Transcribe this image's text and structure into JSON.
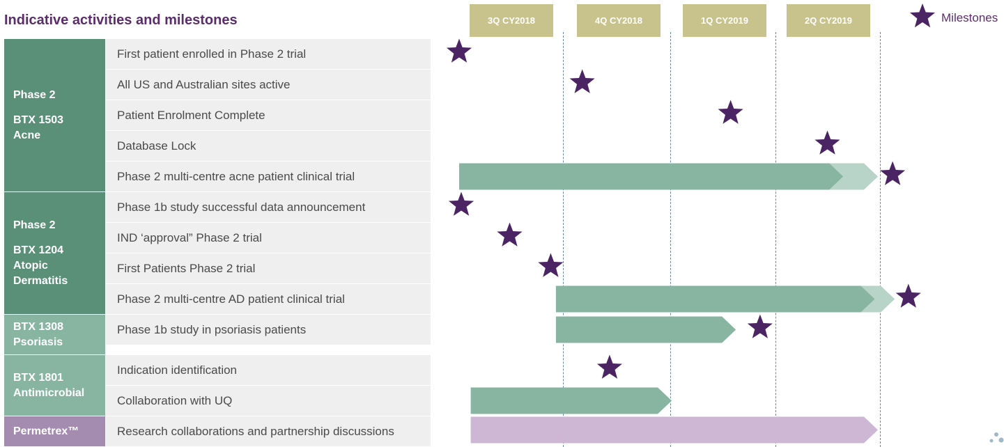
{
  "title": "Indicative activities and milestones",
  "legend": {
    "label": "Milestones",
    "icon": "star-icon"
  },
  "colors": {
    "title": "#5b2d6b",
    "star": "#4b2463",
    "quarter": "#c8c28c",
    "phase_dark": "#5a8f78",
    "phase_light": "#88b4a2",
    "permetrex": "#a48bb0",
    "bar": "#88b4a2",
    "bar_light": "#b8d4c9",
    "bar_purple": "#ceb7d5",
    "row_bg": "#efefef"
  },
  "quarters": [
    "3Q CY2018",
    "4Q CY2018",
    "1Q CY2019",
    "2Q CY2019"
  ],
  "programs": [
    {
      "lines": [
        "Phase 2",
        "",
        "BTX 1503",
        "Acne"
      ]
    },
    {
      "lines": [
        "Phase 2",
        "",
        "BTX 1204",
        "Atopic",
        "Dermatitis"
      ]
    },
    {
      "lines": [
        "BTX 1308",
        "Psoriasis"
      ]
    },
    {
      "lines": [
        "BTX 1801",
        "Antimicrobial"
      ]
    },
    {
      "lines": [
        "Permetrex™"
      ]
    }
  ],
  "activities": [
    "First patient enrolled in Phase 2 trial",
    "All US and Australian sites active",
    "Patient Enrolment Complete",
    "Database Lock",
    "Phase 2 multi-centre acne patient clinical trial",
    "Phase 1b study successful data announcement",
    "IND ‘approval” Phase 2 trial",
    "First Patients Phase 2 trial",
    "Phase 2 multi-centre AD patient clinical trial",
    "Phase 1b study in psoriasis patients",
    "Indication identification",
    "Collaboration with UQ",
    "Research collaborations and partnership discussions"
  ],
  "chart_data": {
    "type": "gantt",
    "x_unit": "quarter",
    "x_categories": [
      "3Q CY2018",
      "4Q CY2018",
      "1Q CY2019",
      "2Q CY2019"
    ],
    "milestones": [
      {
        "activity": "First patient enrolled in Phase 2 trial",
        "x": 0.0
      },
      {
        "activity": "All US and Australian sites active",
        "x": 1.17
      },
      {
        "activity": "Patient Enrolment Complete",
        "x": 2.58
      },
      {
        "activity": "Database Lock",
        "x": 3.5
      },
      {
        "activity": "Phase 2 multi-centre acne patient clinical trial",
        "x": 4.12
      },
      {
        "activity": "Phase 1b study successful data announcement",
        "x": 0.02
      },
      {
        "activity": "IND ‘approval” Phase 2 trial",
        "x": 0.48
      },
      {
        "activity": "First Patients Phase 2 trial",
        "x": 0.87
      },
      {
        "activity": "Phase 2 multi-centre AD patient clinical trial",
        "x": 4.27
      },
      {
        "activity": "Phase 1b study in psoriasis patients",
        "x": 2.86
      },
      {
        "activity": "Indication identification",
        "x": 1.43
      }
    ],
    "bars": [
      {
        "activity": "Phase 2 multi-centre acne patient clinical trial",
        "start": 0.0,
        "end": 3.65,
        "extension_end": 3.98,
        "color": "green"
      },
      {
        "activity": "Phase 2 multi-centre AD patient clinical trial",
        "start": 0.92,
        "end": 3.95,
        "extension_end": 4.14,
        "color": "green"
      },
      {
        "activity": "Phase 1b study in psoriasis patients",
        "start": 0.92,
        "end": 2.63,
        "color": "green"
      },
      {
        "activity": "Collaboration with UQ",
        "start": 0.11,
        "end": 2.02,
        "color": "green"
      },
      {
        "activity": "Research collaborations and partnership discussions",
        "start": 0.11,
        "end": 3.98,
        "color": "purple"
      }
    ]
  }
}
